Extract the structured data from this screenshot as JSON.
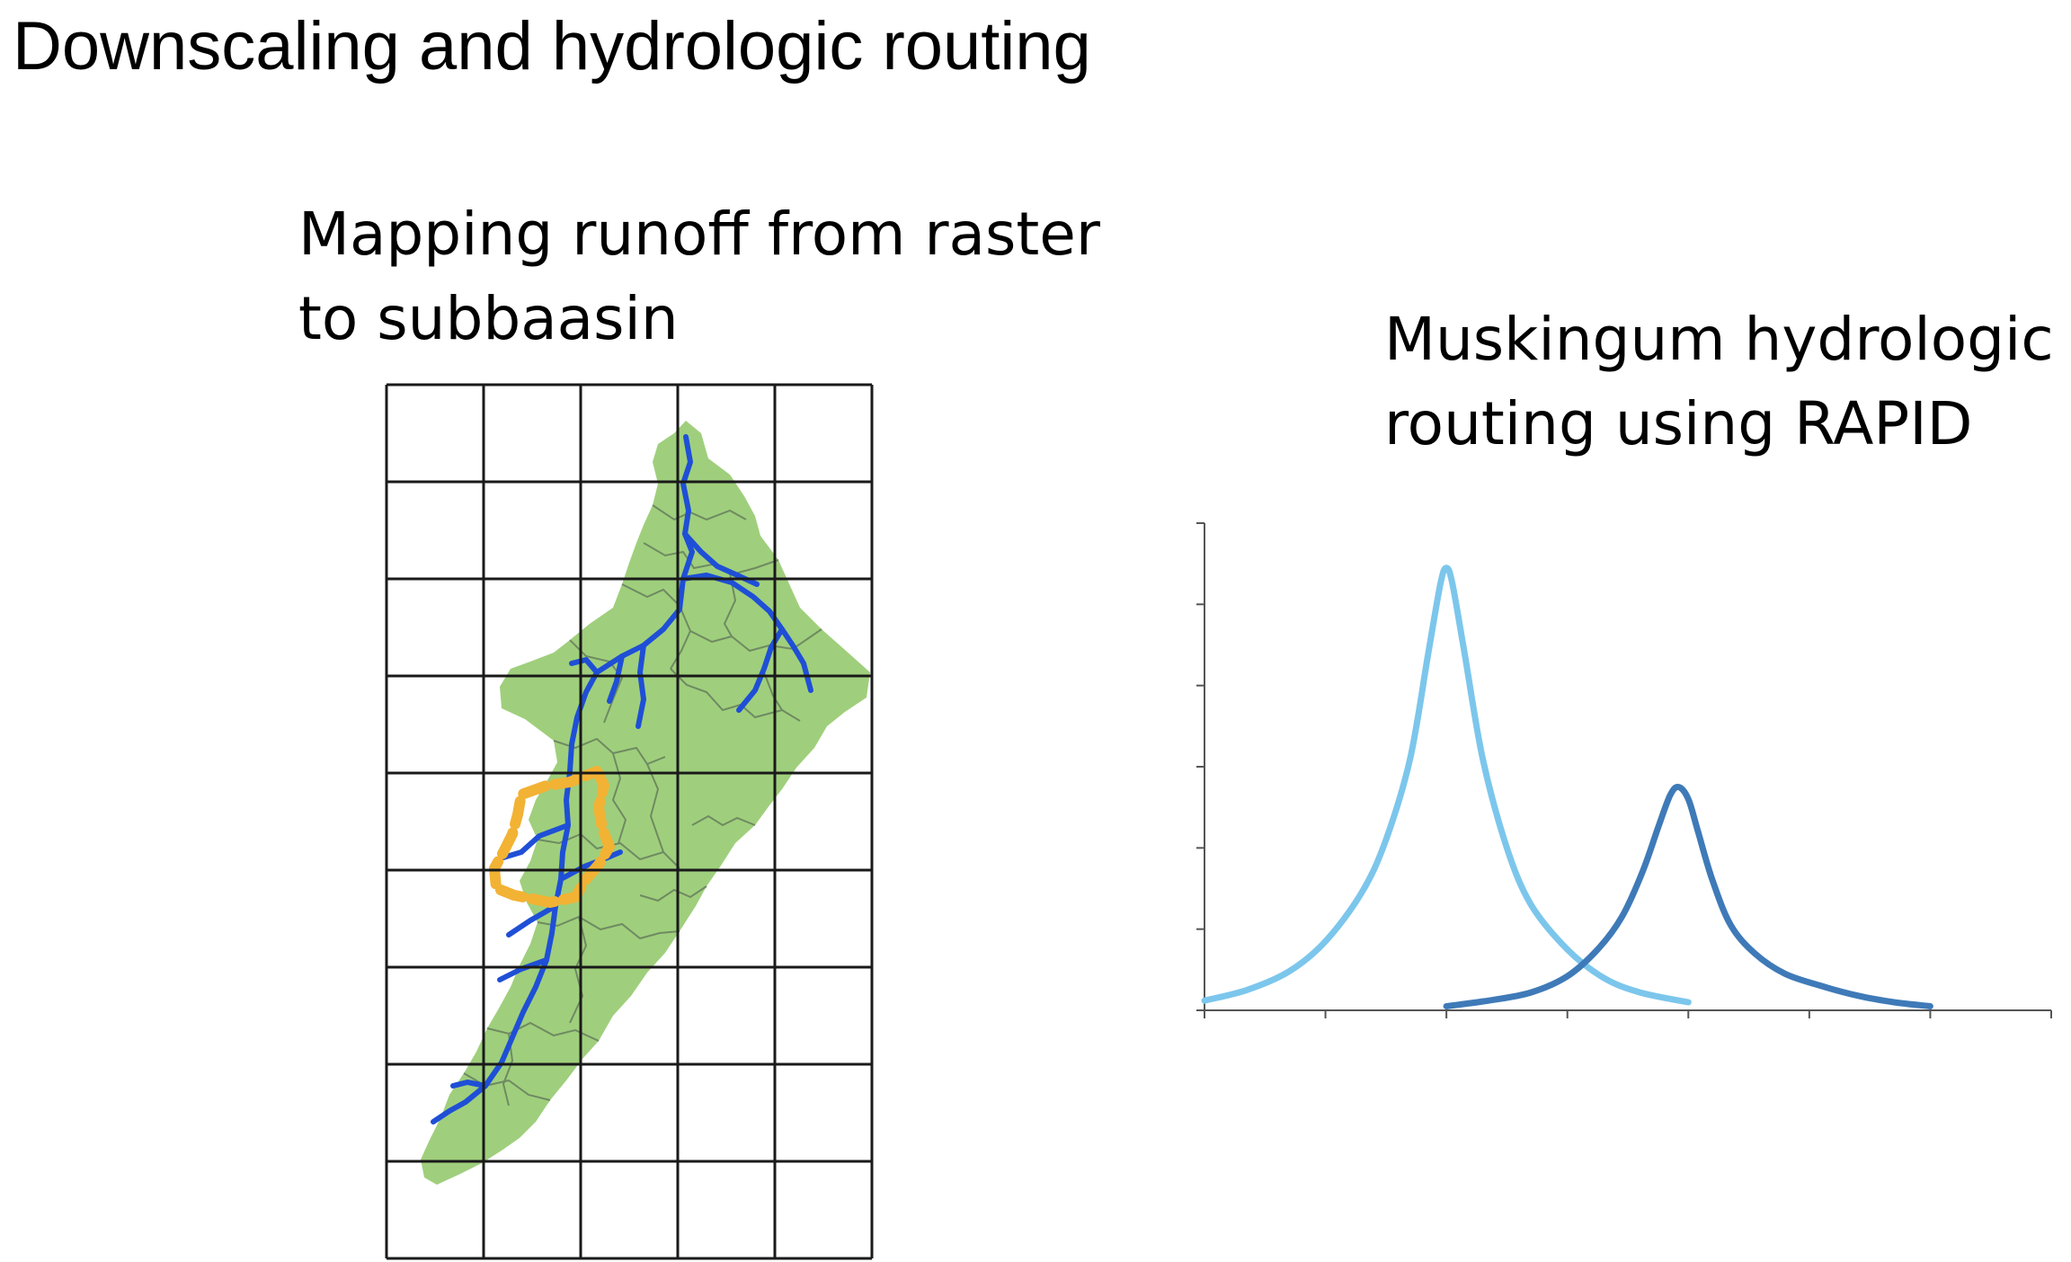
{
  "slide": {
    "title": "Downscaling and hydrologic routing"
  },
  "left_panel": {
    "caption_lines": [
      "Mapping runoff from raster",
      "to subbaasin"
    ]
  },
  "right_panel": {
    "caption_lines": [
      "Muskingum hydrologic",
      "routing using RAPID"
    ]
  },
  "colors": {
    "grid": "#1a1a1a",
    "watershed_fill": "#9fcf7c",
    "subbasin_lines": "#6f8a62",
    "streams": "#1f4fd6",
    "highlight_subbasin": "#f2b234",
    "inflow_hydrograph": "#7cc6ec",
    "outflow_hydrograph": "#3f7ab8",
    "axes": "#555555"
  },
  "chart_data": {
    "type": "line",
    "title": "",
    "xlabel": "",
    "ylabel": "",
    "xlim": [
      0,
      7
    ],
    "ylim": [
      0,
      6
    ],
    "x_tick_count": 7,
    "y_tick_count": 6,
    "tick_labels_shown": false,
    "legend": "none",
    "grid": false,
    "series": [
      {
        "role": "inflow",
        "color": "#7cc6ec",
        "x": [
          0,
          0.35,
          0.7,
          1.0,
          1.3,
          1.5,
          1.7,
          1.85,
          1.95,
          2.0,
          2.05,
          2.15,
          2.3,
          2.5,
          2.7,
          3.0,
          3.3,
          3.6,
          4.0
        ],
        "y": [
          0.12,
          0.25,
          0.48,
          0.85,
          1.45,
          2.1,
          3.1,
          4.4,
          5.25,
          5.45,
          5.25,
          4.4,
          3.1,
          2.0,
          1.3,
          0.75,
          0.4,
          0.22,
          0.1
        ]
      },
      {
        "role": "outflow",
        "color": "#3f7ab8",
        "x": [
          2.0,
          2.35,
          2.7,
          3.0,
          3.25,
          3.45,
          3.62,
          3.75,
          3.85,
          3.92,
          4.0,
          4.08,
          4.2,
          4.35,
          4.55,
          4.8,
          5.1,
          5.4,
          5.7,
          6.0
        ],
        "y": [
          0.05,
          0.12,
          0.22,
          0.42,
          0.75,
          1.15,
          1.7,
          2.25,
          2.65,
          2.75,
          2.6,
          2.2,
          1.6,
          1.05,
          0.7,
          0.45,
          0.3,
          0.18,
          0.1,
          0.05
        ]
      }
    ]
  }
}
